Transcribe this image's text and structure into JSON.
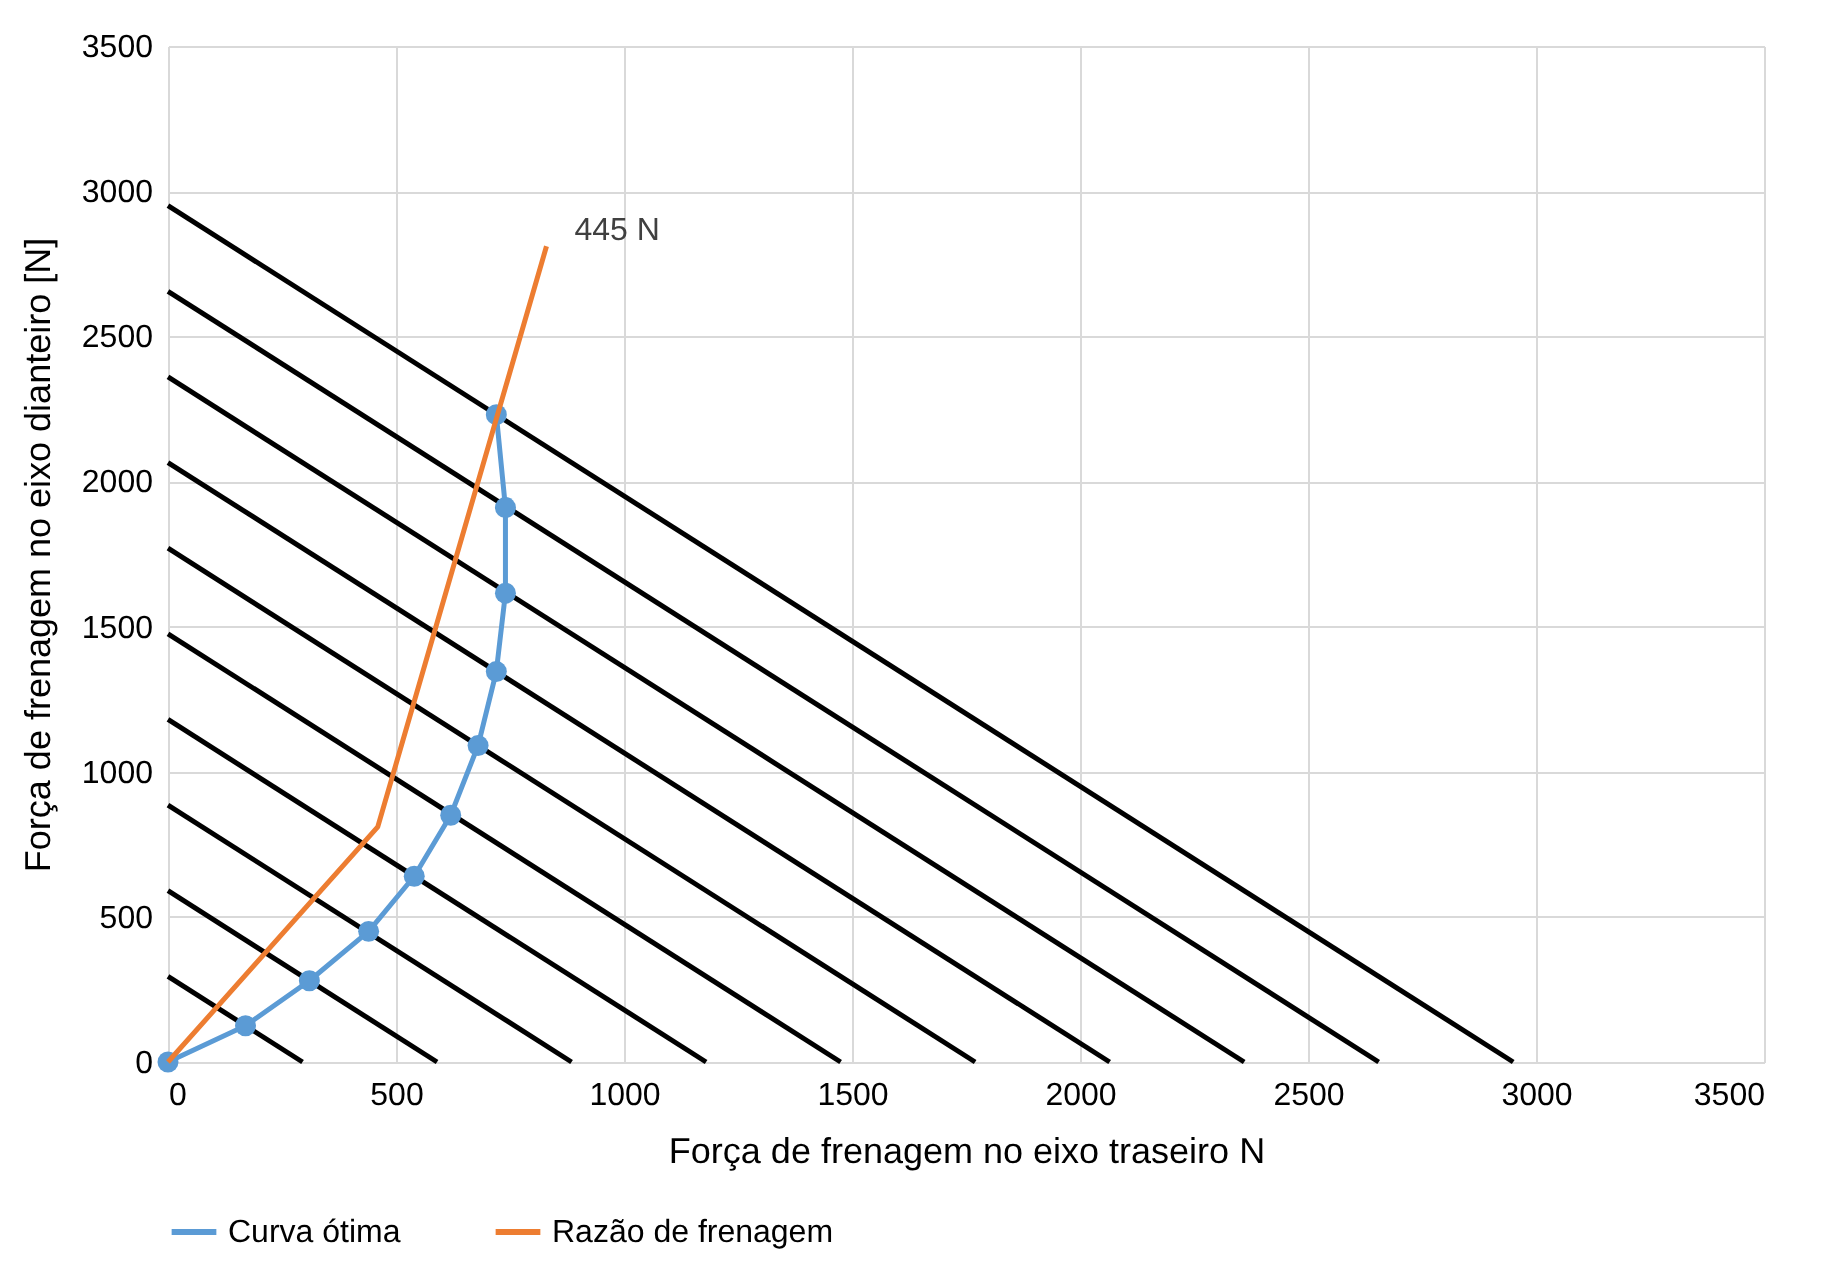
{
  "chart_data": {
    "type": "line",
    "xlabel": "Força de frenagem no eixo traseiro N",
    "ylabel": "Força de frenagem no eixo dianteiro [N]",
    "xlim": [
      0,
      3500
    ],
    "ylim": [
      0,
      3500
    ],
    "xticks": [
      0,
      500,
      1000,
      1500,
      2000,
      2500,
      3000,
      3500
    ],
    "yticks": [
      0,
      500,
      1000,
      1500,
      2000,
      2500,
      3000,
      3500
    ],
    "grid": true,
    "legend": "bottom",
    "line_style": "solid",
    "annotations": [
      {
        "text": "445 N",
        "x": 830,
        "y": 2810
      }
    ],
    "series": [
      {
        "x": [
          0,
          295
        ],
        "values": [
          295,
          0
        ],
        "color": "#000000",
        "marker": "none"
      },
      {
        "x": [
          0,
          590
        ],
        "values": [
          590,
          0
        ],
        "color": "#000000",
        "marker": "none"
      },
      {
        "x": [
          0,
          885
        ],
        "values": [
          885,
          0
        ],
        "color": "#000000",
        "marker": "none"
      },
      {
        "x": [
          0,
          1180
        ],
        "values": [
          1180,
          0
        ],
        "color": "#000000",
        "marker": "none"
      },
      {
        "x": [
          0,
          1475
        ],
        "values": [
          1475,
          0
        ],
        "color": "#000000",
        "marker": "none"
      },
      {
        "x": [
          0,
          1770
        ],
        "values": [
          1770,
          0
        ],
        "color": "#000000",
        "marker": "none"
      },
      {
        "x": [
          0,
          2065
        ],
        "values": [
          2065,
          0
        ],
        "color": "#000000",
        "marker": "none"
      },
      {
        "x": [
          0,
          2360
        ],
        "values": [
          2360,
          0
        ],
        "color": "#000000",
        "marker": "none"
      },
      {
        "x": [
          0,
          2655
        ],
        "values": [
          2655,
          0
        ],
        "color": "#000000",
        "marker": "none"
      },
      {
        "x": [
          0,
          2950
        ],
        "values": [
          2950,
          0
        ],
        "color": "#000000",
        "marker": "none"
      },
      {
        "name": "Curva ótima",
        "x": [
          0,
          170,
          310,
          440,
          540,
          620,
          680,
          720,
          740,
          740,
          720
        ],
        "values": [
          0,
          125,
          280,
          450,
          640,
          850,
          1090,
          1345,
          1615,
          1910,
          2230
        ],
        "color": "#5b9bd5",
        "marker": "circle"
      },
      {
        "name": "Razão de frenagem",
        "x": [
          0,
          460,
          830
        ],
        "values": [
          0,
          810,
          2810
        ],
        "color": "#ed7d31",
        "marker": "none"
      }
    ]
  }
}
